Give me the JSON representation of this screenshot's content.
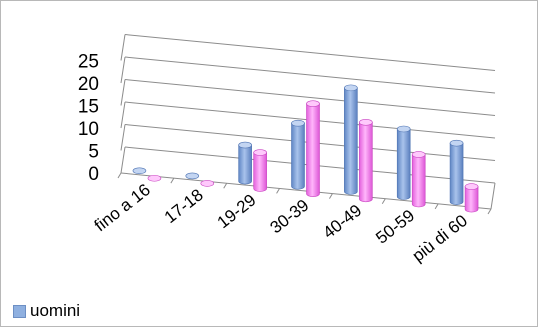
{
  "chart_data": {
    "type": "bar",
    "style": "3d-clustered-column",
    "categories": [
      "fino a 16",
      "17-18",
      "19-29",
      "30-39",
      "40-49",
      "50-59",
      "più di 60"
    ],
    "series": [
      {
        "name": "uomini",
        "color": "#8fb0e0",
        "values": [
          0,
          0,
          8,
          14,
          23,
          15,
          13
        ]
      },
      {
        "name": "",
        "color": "#f58af0",
        "values": [
          0,
          0,
          8,
          20,
          17,
          11,
          5
        ]
      }
    ],
    "yticks": [
      "0",
      "5",
      "10",
      "15",
      "20",
      "25"
    ],
    "ylim": [
      0,
      25
    ],
    "grid": true,
    "legend_position": "bottom-left",
    "title": "",
    "xlabel": "",
    "ylabel": ""
  }
}
